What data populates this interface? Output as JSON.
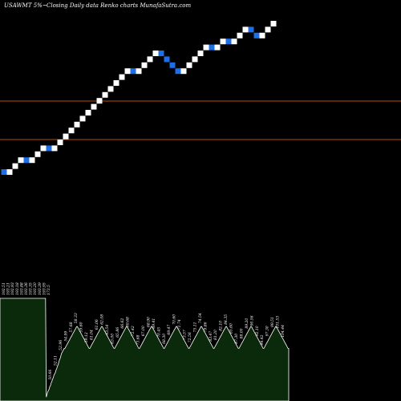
{
  "header": {
    "symbol": "USAWMT 5%~",
    "subtitle": "Closing Daily data Renko charts MunafaSutra.com"
  },
  "colors": {
    "background": "#000000",
    "up_brick": "#ffffff",
    "down_brick": "#1e6fe6",
    "level_line": "#b5500e",
    "volume_fill": "#0b2a0b",
    "volume_edge": "#ffffff",
    "label": "#ffffff"
  },
  "chart_data": [
    {
      "type": "renko",
      "y_scale": "log",
      "brick_size_pct": 5,
      "directions": [
        -1,
        1,
        1,
        1,
        -1,
        1,
        1,
        1,
        -1,
        1,
        1,
        1,
        1,
        1,
        1,
        1,
        1,
        1,
        1,
        1,
        1,
        1,
        1,
        -1,
        1,
        1,
        1,
        1,
        -1,
        -1,
        -1,
        -1,
        1,
        1,
        1,
        1,
        1,
        -1,
        1,
        1,
        -1,
        1,
        1,
        1,
        -1,
        -1,
        1,
        1,
        1
      ],
      "levels": [
        1,
        1.5
      ]
    },
    {
      "type": "area",
      "description": "volume",
      "values": [
        80,
        80,
        80,
        80,
        80,
        80,
        80,
        80,
        80,
        80,
        80,
        80,
        80,
        80,
        80,
        80,
        80,
        80,
        80,
        80,
        80,
        80,
        80,
        80,
        80,
        80,
        80,
        80,
        80,
        80,
        80,
        80,
        80,
        80,
        80,
        80,
        80,
        80,
        80,
        80,
        80,
        80,
        80,
        80,
        80,
        80,
        80,
        80,
        80,
        80,
        80,
        80,
        80,
        80,
        80,
        80,
        80,
        80,
        80,
        80,
        80,
        80,
        80,
        80,
        80,
        80,
        80,
        3,
        5,
        7,
        8,
        9,
        11,
        12,
        14,
        15,
        17,
        18,
        20,
        21,
        22,
        24,
        25,
        27,
        28,
        30,
        32,
        33,
        35,
        37,
        38,
        39,
        40,
        41,
        41,
        42,
        43,
        44,
        45,
        46,
        47,
        48,
        49,
        50,
        51,
        52,
        53,
        54,
        55,
        56,
        57,
        58,
        58,
        57,
        56,
        55,
        54,
        53,
        52,
        51,
        50,
        49,
        48,
        47,
        46,
        45,
        44,
        43,
        42,
        41,
        41,
        42,
        43,
        44,
        45,
        46,
        47,
        48,
        49,
        50,
        51,
        52,
        53,
        54,
        55,
        56,
        57,
        58,
        58,
        57,
        56,
        55,
        54,
        53,
        52,
        51,
        50,
        49,
        48,
        47,
        46,
        45,
        44,
        43,
        42,
        41,
        41,
        42,
        43,
        44,
        45,
        46,
        47,
        48,
        49,
        50,
        51,
        52,
        53,
        54,
        55,
        56,
        57,
        58,
        58,
        57,
        56,
        55,
        54,
        53,
        52,
        51,
        50,
        49,
        48,
        47,
        46,
        45,
        44,
        43,
        42,
        41,
        41,
        42,
        43,
        44,
        45,
        46,
        47,
        48,
        49,
        50,
        51,
        52,
        53,
        54,
        55,
        56,
        57,
        58,
        58,
        57,
        56,
        55,
        54,
        53,
        52,
        51,
        50,
        49,
        48,
        47,
        46,
        45,
        44,
        43,
        42,
        41,
        41,
        42,
        43,
        44,
        45,
        46,
        47,
        48,
        49,
        50,
        51,
        52,
        53,
        54,
        55,
        56,
        57,
        58,
        58,
        57,
        56,
        55,
        54,
        53,
        52,
        51,
        50,
        49,
        48,
        47,
        46,
        45,
        44,
        43,
        42,
        41,
        41,
        42,
        43,
        44,
        45,
        46,
        47,
        48,
        49,
        50,
        51,
        52,
        53,
        54,
        55,
        56,
        57,
        58,
        58,
        57,
        56,
        55,
        54,
        53,
        52,
        51,
        50,
        49,
        48,
        47,
        46,
        45,
        44,
        43,
        42,
        41,
        41,
        42,
        43,
        44,
        45,
        46,
        47,
        48,
        49,
        50,
        51,
        52,
        53,
        54,
        55,
        56,
        57,
        58,
        58,
        57,
        56,
        55,
        54,
        53,
        52,
        51,
        50,
        49,
        48,
        47,
        46,
        45,
        44,
        43,
        42,
        41,
        41,
        42,
        43,
        44,
        45,
        46,
        47,
        48,
        49,
        50,
        51,
        52,
        53,
        54,
        55,
        56,
        57,
        58,
        58,
        57,
        56,
        55,
        54,
        53,
        52,
        51,
        50,
        49,
        48,
        47,
        46,
        45,
        44,
        43,
        42,
        41,
        41,
        42,
        43,
        44,
        45,
        46,
        47,
        48,
        49,
        50,
        51,
        52,
        53,
        54,
        55,
        56,
        57,
        58,
        58,
        57,
        56,
        55,
        54,
        53,
        52,
        51,
        50,
        49,
        48,
        47,
        46,
        45,
        44,
        43,
        42,
        41,
        41
      ],
      "price_labels": [
        "192.51",
        "193.21",
        "192.93",
        "193.18",
        "193.88",
        "193.36",
        "193.35",
        "193.20",
        "193.39",
        "193.95",
        "173.5",
        "50.66",
        "52.11",
        "52.96",
        "54.99",
        "57.68",
        "58.33",
        "59.60",
        "59.12",
        "61.04",
        "61.06",
        "62.08",
        "63.54",
        "63.00",
        "65.86",
        "66.62",
        "69.68",
        "72.42",
        "73.68",
        "67.00",
        "68.90",
        "69.41",
        "70.45",
        "68.30",
        "69.47",
        "70.60",
        "71.74",
        "73.57",
        "72.56",
        "75.11",
        "74.54",
        "79.86",
        "83.47",
        "81.20",
        "82.10",
        "84.35",
        "85.60",
        "87.30",
        "88.00",
        "89.20",
        "90.56",
        "92.10",
        "94.42",
        "97.30",
        "99.51",
        "101.53",
        "104.44"
      ]
    }
  ]
}
